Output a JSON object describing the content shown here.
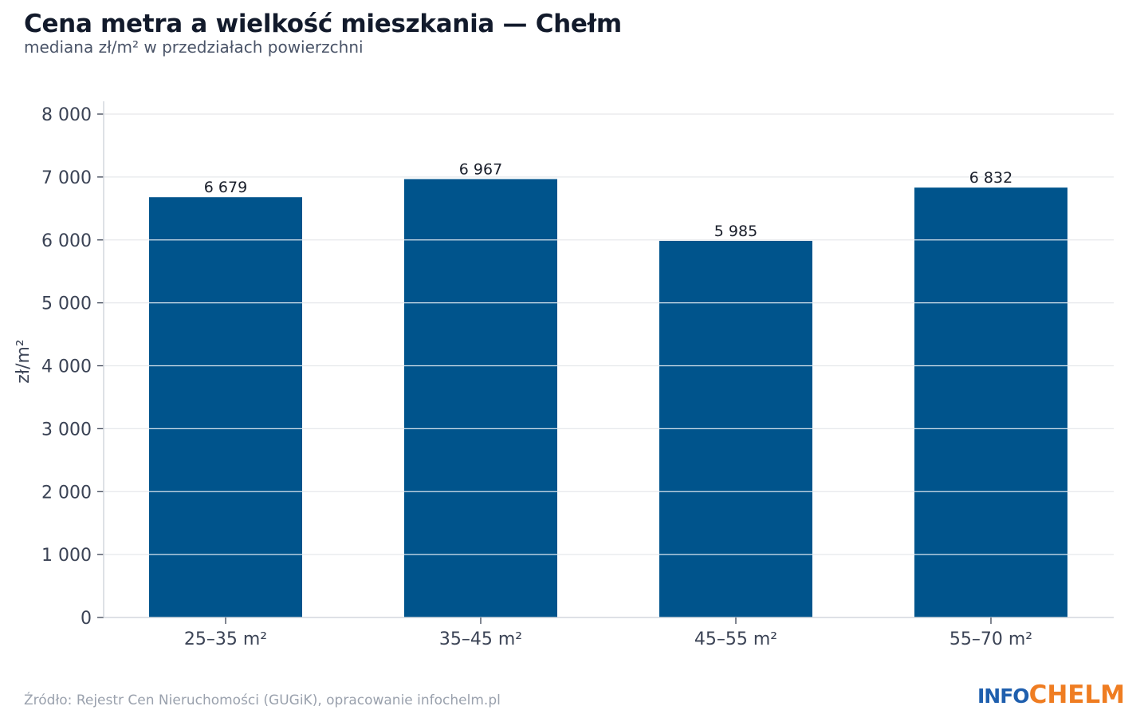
{
  "header": {
    "title": "Cena metra a wielkość mieszkania — Chełm",
    "subtitle": "mediana zł/m² w przedziałach powierzchni"
  },
  "footer": {
    "source": "Źródło: Rejestr Cen Nieruchomości (GUGiK), opracowanie infochelm.pl",
    "logo_part1": "INFO",
    "logo_part2": "CHELM"
  },
  "colors": {
    "bar": "#00548c",
    "grid": "#e6e8eb",
    "axis": "#d3d7dd",
    "tick_text": "#3b4355",
    "value_text": "#1a1f2b",
    "logo_blue": "#1f5fae",
    "logo_orange": "#ef7d22"
  },
  "chart_data": {
    "type": "bar",
    "title": "Cena metra a wielkość mieszkania — Chełm",
    "subtitle": "mediana zł/m² w przedziałach powierzchni",
    "xlabel": "",
    "ylabel": "zł/m²",
    "categories": [
      "25–35 m²",
      "35–45 m²",
      "45–55 m²",
      "55–70 m²"
    ],
    "values": [
      6679,
      6967,
      5985,
      6832
    ],
    "value_labels": [
      "6 679",
      "6 967",
      "5 985",
      "6 832"
    ],
    "ylim": [
      0,
      8000
    ],
    "yticks": [
      0,
      1000,
      2000,
      3000,
      4000,
      5000,
      6000,
      7000,
      8000
    ],
    "ytick_labels": [
      "0",
      "1 000",
      "2 000",
      "3 000",
      "4 000",
      "5 000",
      "6 000",
      "7 000",
      "8 000"
    ],
    "grid": true,
    "legend": "none"
  }
}
